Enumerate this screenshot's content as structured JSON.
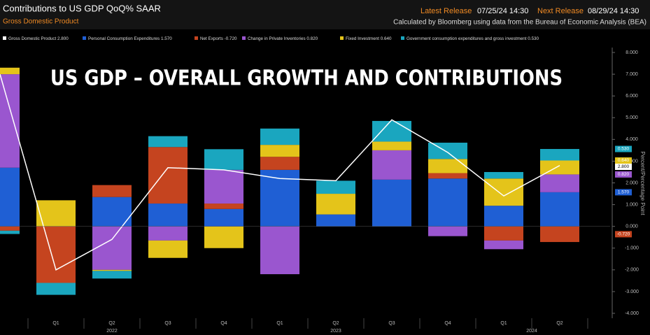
{
  "header": {
    "title": "Contributions to US GDP QoQ% SAAR",
    "subtitle": "Gross Domestic Product",
    "latest_label": "Latest Release",
    "latest_value": "07/25/24 14:30",
    "next_label": "Next Release",
    "next_value": "08/29/24 14:30",
    "source": "Calculated by Bloomberg using data from the Bureau of Economic Analysis (BEA)"
  },
  "chart_data": {
    "type": "bar",
    "stacked": true,
    "title": "US GDP – OVERALL GROWTH AND CONTRIBUTIONS",
    "y_axis_label": "Percent/Percentage Point",
    "categories": [
      null,
      "Q1",
      "Q2",
      "Q3",
      "Q4",
      "Q1",
      "Q2",
      "Q3",
      "Q4",
      "Q1",
      "Q2"
    ],
    "year_labels": [
      "2022",
      "2023",
      "2024"
    ],
    "ylim": [
      -4,
      8.3
    ],
    "yticks": [
      {
        "value": 8,
        "label": "8.000"
      },
      {
        "value": 7,
        "label": "7.000"
      },
      {
        "value": 6,
        "label": "6.000"
      },
      {
        "value": 5,
        "label": "5.000"
      },
      {
        "value": 4,
        "label": "4.000"
      },
      {
        "value": 3,
        "label": "3.000"
      },
      {
        "value": 2,
        "label": "2.000"
      },
      {
        "value": 1,
        "label": "1.000"
      },
      {
        "value": 0,
        "label": "0.000"
      },
      {
        "value": -1,
        "label": "-1.000"
      },
      {
        "value": -2,
        "label": "-2.000"
      },
      {
        "value": -3,
        "label": "-3.000"
      },
      {
        "value": -4,
        "label": "-4.000"
      }
    ],
    "grid": false,
    "series": [
      {
        "name": "Gross Domestic Product",
        "type": "line",
        "color": "#ffffff",
        "values": [
          7.0,
          -2.0,
          -0.6,
          2.7,
          2.6,
          2.2,
          2.1,
          4.9,
          3.4,
          1.4,
          2.8
        ],
        "value_labels": [
          null,
          null,
          null,
          null,
          null,
          null,
          null,
          null,
          null,
          null,
          "2.800"
        ]
      },
      {
        "name": "Personal Consumption Expenditures",
        "type": "bar",
        "color": "#1f5fd4",
        "values": [
          2.7,
          0,
          1.35,
          1.05,
          0.8,
          2.6,
          0.55,
          2.15,
          2.2,
          0.95,
          1.57
        ],
        "value_labels": [
          null,
          null,
          null,
          null,
          null,
          null,
          null,
          null,
          null,
          null,
          "1.570"
        ]
      },
      {
        "name": "Net Exports",
        "type": "bar",
        "color": "#c5441f",
        "values": [
          -0.2,
          -2.6,
          0.55,
          2.6,
          0.25,
          0.6,
          0,
          0,
          0.25,
          -0.65,
          -0.72
        ],
        "value_labels": [
          null,
          null,
          null,
          null,
          null,
          null,
          null,
          null,
          null,
          null,
          "-0.720"
        ]
      },
      {
        "name": "Change in Private Inventories",
        "type": "bar",
        "color": "#9a56cf",
        "values": [
          4.3,
          0,
          -2.0,
          -0.65,
          1.55,
          -2.2,
          0,
          1.35,
          -0.45,
          -0.4,
          0.82
        ],
        "value_labels": [
          null,
          null,
          null,
          null,
          null,
          null,
          null,
          null,
          null,
          null,
          "0.820"
        ]
      },
      {
        "name": "Fixed Investment",
        "type": "bar",
        "color": "#e4c41a",
        "values": [
          0.3,
          1.2,
          -0.05,
          -0.8,
          -1.0,
          0.55,
          0.95,
          0.4,
          0.65,
          1.25,
          0.64
        ],
        "value_labels": [
          null,
          null,
          null,
          null,
          null,
          null,
          null,
          null,
          null,
          null,
          "0.640"
        ]
      },
      {
        "name": "Government consumption expenditures and gross investment",
        "type": "bar",
        "color": "#1aa6bf",
        "values": [
          -0.15,
          -0.55,
          -0.35,
          0.5,
          0.95,
          0.75,
          0.6,
          0.95,
          0.75,
          0.3,
          0.53
        ],
        "value_labels": [
          null,
          null,
          null,
          null,
          null,
          null,
          null,
          null,
          null,
          null,
          "0.530"
        ]
      }
    ]
  }
}
